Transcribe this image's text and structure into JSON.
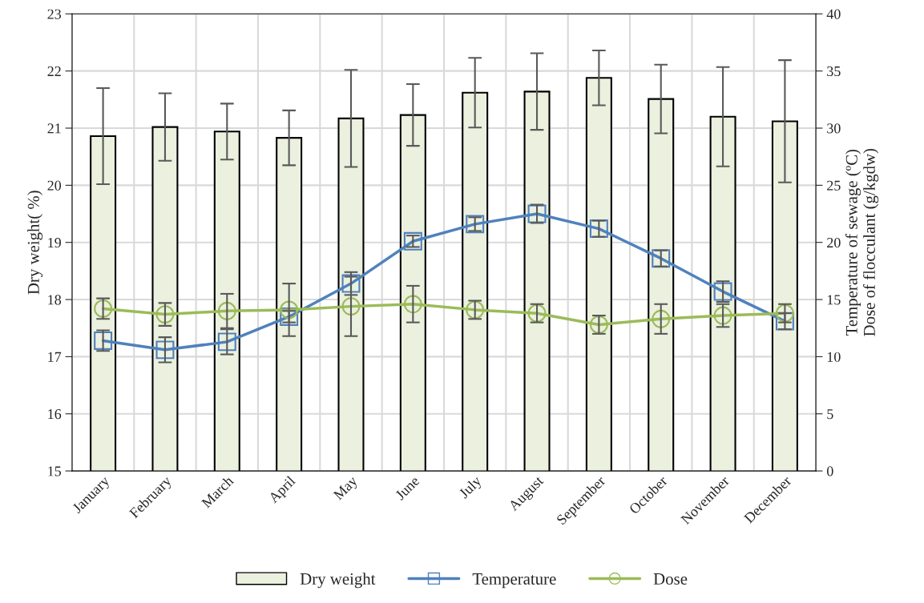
{
  "chart_data": {
    "type": "bar",
    "categories": [
      "January",
      "February",
      "March",
      "April",
      "May",
      "June",
      "July",
      "August",
      "September",
      "October",
      "November",
      "December"
    ],
    "ylabel": "Dry weight( %)",
    "y2label": "Temperature of sewage (ºC)\nDose of flocculant (g/kgdw)",
    "ylim": [
      15,
      23
    ],
    "yticks": [
      15,
      16,
      17,
      18,
      19,
      20,
      21,
      22,
      23
    ],
    "y2lim": [
      0,
      40
    ],
    "y2ticks": [
      0,
      5,
      10,
      15,
      20,
      25,
      30,
      35,
      40
    ],
    "grid": true,
    "legend": "bottom",
    "series": [
      {
        "name": "Dry weight",
        "color": "#ebf0df",
        "values": [
          20.86,
          21.02,
          20.94,
          20.83,
          21.17,
          21.23,
          21.62,
          21.64,
          21.88,
          21.51,
          21.2,
          21.12
        ],
        "errors": [
          0.84,
          0.59,
          0.49,
          0.48,
          0.85,
          0.54,
          0.61,
          0.67,
          0.48,
          0.6,
          0.87,
          1.07
        ]
      },
      {
        "name": "Temperature",
        "type": "line",
        "axis": "y2",
        "marker": "square",
        "color": "#4f81bd",
        "values": [
          11.4,
          10.6,
          11.3,
          13.5,
          16.4,
          20.1,
          21.6,
          22.5,
          21.2,
          18.6,
          15.7,
          13.1
        ],
        "errors": [
          0.9,
          1.1,
          1.1,
          0.5,
          1.0,
          0.5,
          0.6,
          0.8,
          0.7,
          0.7,
          0.9,
          0.7
        ]
      },
      {
        "name": "Dose",
        "type": "line",
        "axis": "y2",
        "marker": "circle",
        "color": "#9bbb59",
        "values": [
          14.2,
          13.7,
          14.0,
          14.1,
          14.4,
          14.6,
          14.1,
          13.8,
          12.8,
          13.3,
          13.6,
          13.8
        ],
        "errors": [
          0.9,
          1.0,
          1.5,
          2.3,
          2.6,
          1.6,
          0.8,
          0.8,
          0.8,
          1.3,
          1.0,
          0.8
        ]
      }
    ]
  }
}
